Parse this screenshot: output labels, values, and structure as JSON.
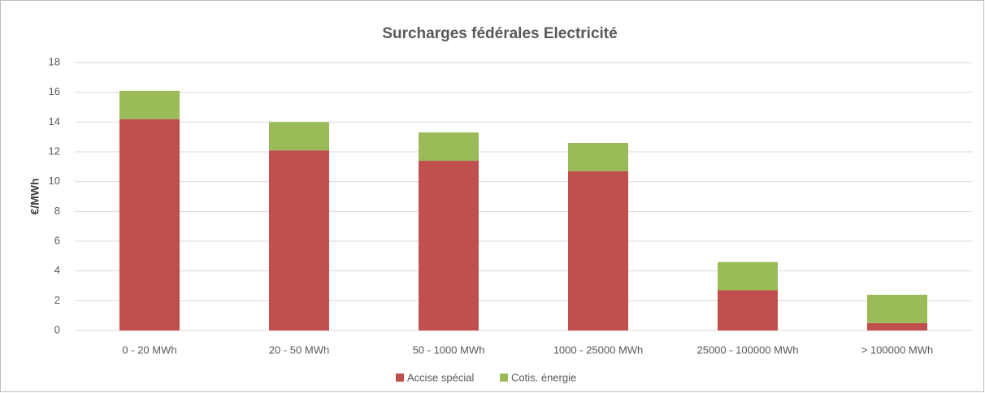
{
  "chart_data": {
    "type": "bar",
    "stacked": true,
    "title": "Surcharges fédérales Electricité",
    "y_label": "€/MWh",
    "categories": [
      "0 - 20 MWh",
      "20 - 50 MWh",
      "50 - 1000 MWh",
      "1000 - 25000 MWh",
      "25000 - 100000 MWh",
      "> 100000 MWh"
    ],
    "series": [
      {
        "name": "Accise spécial",
        "color": "#c0504d",
        "values": [
          14.2,
          12.1,
          11.4,
          10.7,
          2.7,
          0.5
        ]
      },
      {
        "name": "Cotis. énergie",
        "color": "#9bbb59",
        "values": [
          1.9,
          1.9,
          1.9,
          1.9,
          1.9,
          1.9
        ]
      }
    ],
    "ylim": [
      0,
      18
    ],
    "yticks": [
      0,
      2,
      4,
      6,
      8,
      10,
      12,
      14,
      16,
      18
    ],
    "grid": true,
    "legend": "bottom"
  }
}
